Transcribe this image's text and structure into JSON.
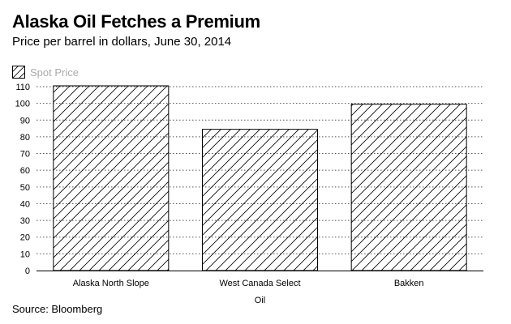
{
  "title": "Alaska Oil Fetches a Premium",
  "subtitle": "Price per barrel in dollars, June 30, 2014",
  "source": "Source: Bloomberg",
  "chart_data": {
    "type": "bar",
    "categories": [
      "Alaska North Slope",
      "West Canada Select",
      "Bakken"
    ],
    "series": [
      {
        "name": "Spot Price",
        "values": [
          110.5,
          84.5,
          99.5
        ]
      }
    ],
    "xlabel": "Oil",
    "ylabel": "",
    "ylim": [
      0,
      110
    ],
    "yticks": [
      0,
      10,
      20,
      30,
      40,
      50,
      60,
      70,
      80,
      90,
      100,
      110
    ],
    "grid": true,
    "legend_position": "top-left",
    "fill_pattern": "diagonal-hatch"
  }
}
